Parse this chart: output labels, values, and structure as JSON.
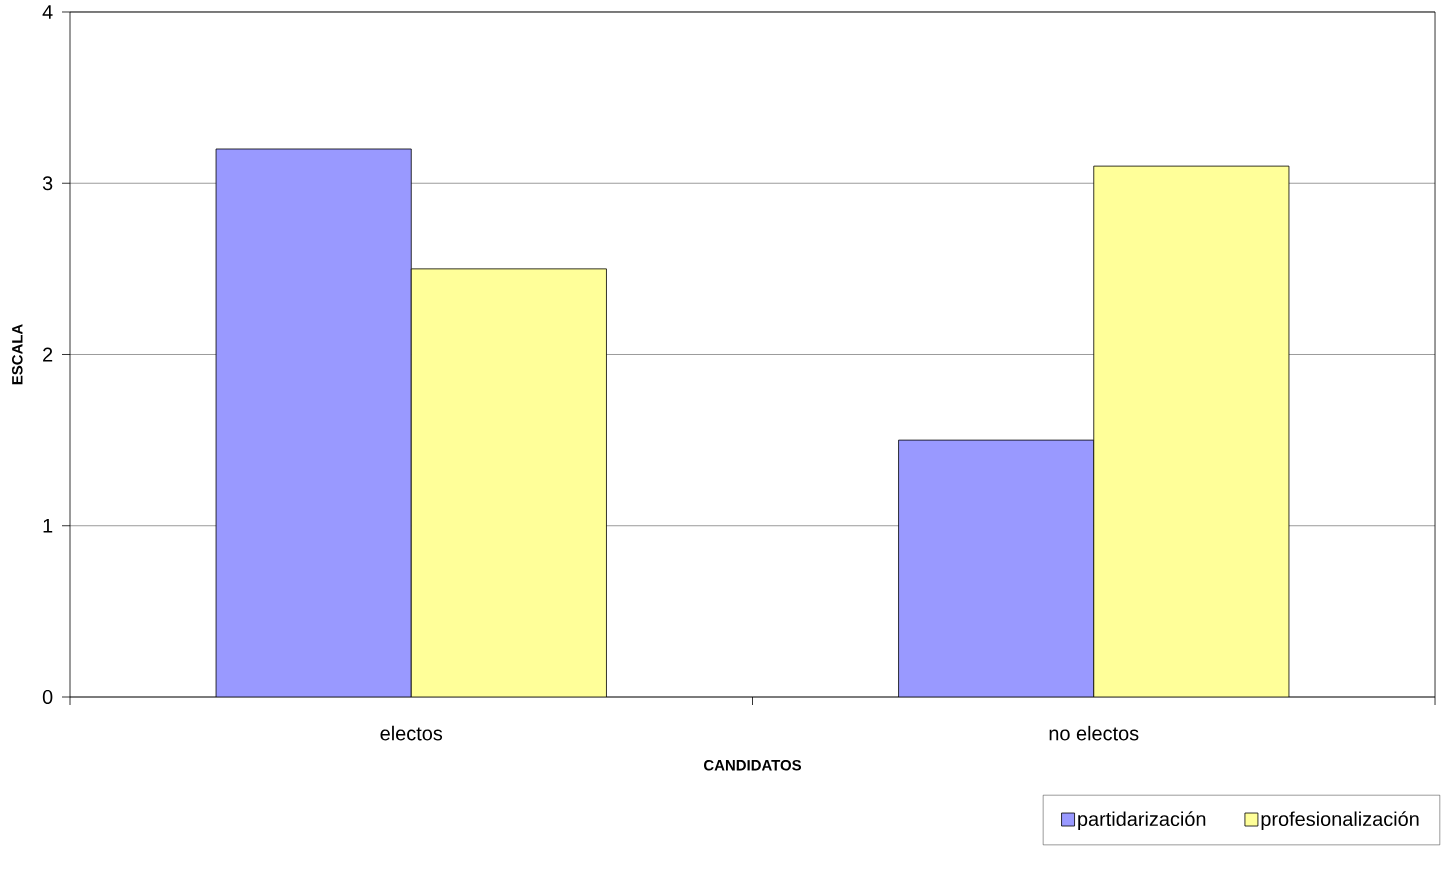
{
  "chart_data": {
    "type": "bar",
    "categories": [
      "electos",
      "no electos"
    ],
    "series": [
      {
        "name": "partidarización",
        "color": "#9999ff",
        "values": [
          3.2,
          1.5
        ]
      },
      {
        "name": "profesionalización",
        "color": "#ffff99",
        "values": [
          2.5,
          3.1
        ]
      }
    ],
    "xlabel": "CANDIDATOS",
    "ylabel": "ESCALA",
    "ylim": [
      0,
      4
    ],
    "yticks": [
      0,
      1,
      2,
      3,
      4
    ],
    "grid": "y",
    "legend": "bottom right"
  }
}
